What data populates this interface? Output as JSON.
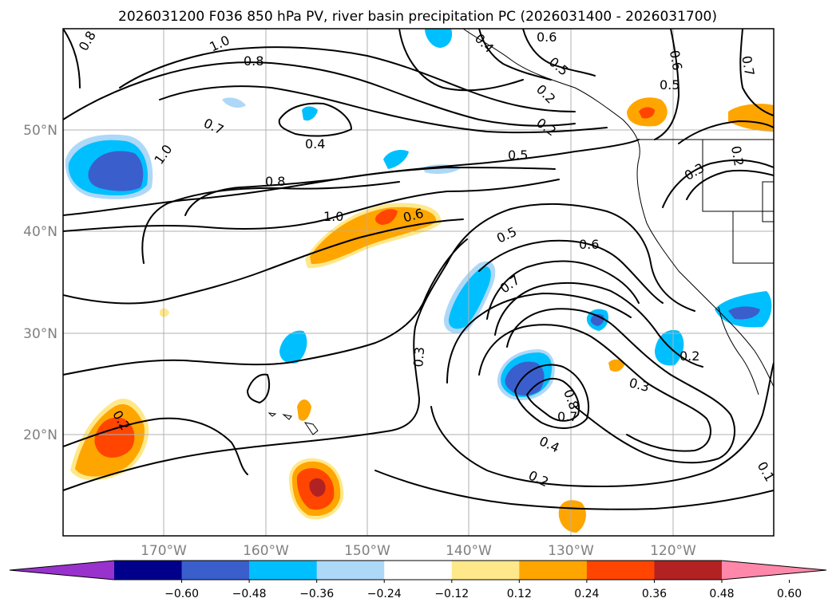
{
  "title": "2026031200 F036 850 hPa PV, river basin precipitation PC (2026031400 - 2026031700)",
  "latitude_labels": [
    "50°N",
    "40°N",
    "30°N",
    "20°N"
  ],
  "longitude_labels": [
    "170°W",
    "160°W",
    "150°W",
    "140°W",
    "130°W",
    "120°W"
  ],
  "contour_labels": [
    "0.8",
    "1.0",
    "0.8",
    "0.7",
    "1.0",
    "0.4",
    "0.8",
    "1.0",
    "0.6",
    "0.5",
    "0.5",
    "0.6",
    "0.7",
    "0.3",
    "0.2",
    "0.3",
    "0.8",
    "0.7",
    "0.4",
    "0.2",
    "0.2",
    "0.6",
    "0.4",
    "0.5",
    "0.2",
    "0.2",
    "0.6",
    "0.7",
    "0.5",
    "0.3",
    "0.2",
    "0.1"
  ],
  "colorbar": {
    "tick_labels": [
      "−0.60",
      "−0.48",
      "−0.36",
      "−0.24",
      "−0.12",
      "0.12",
      "0.24",
      "0.36",
      "0.48",
      "0.60"
    ],
    "colors": [
      "#9932cc",
      "#00008b",
      "#3a5fcd",
      "#00bfff",
      "#add8f8",
      "#ffffff",
      "#ffe88a",
      "#ffa500",
      "#ff4500",
      "#b22222",
      "#ff88aa"
    ]
  },
  "fill_colors": {
    "light_blue": "#add8f8",
    "blue": "#00bfff",
    "dark_blue": "#3a5fcd",
    "yellow": "#ffe88a",
    "orange": "#ffa500",
    "red_orange": "#ff4500",
    "dark_red": "#b22222"
  }
}
